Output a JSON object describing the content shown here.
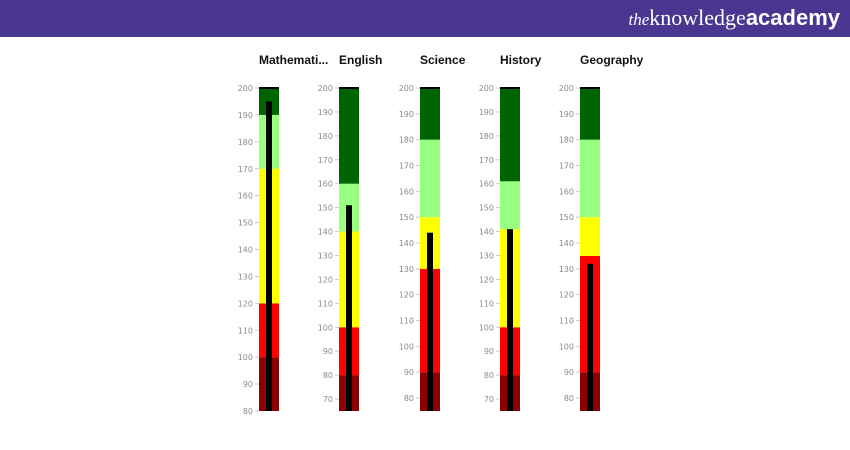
{
  "header": {
    "brand_the": "the",
    "brand_knowledge": "knowledge",
    "brand_academy": "academy",
    "background": "#483691"
  },
  "chart_data": {
    "type": "bullet",
    "orientation": "vertical",
    "colors": {
      "dark_red": "#8b0000",
      "red": "#ff0000",
      "yellow": "#ffff00",
      "light_green": "#99ff7f",
      "dark_green": "#006400",
      "measure": "#000000",
      "marker": "#000000"
    },
    "bars": [
      {
        "title": "Mathemati...",
        "ylim": [
          80,
          200
        ],
        "ticks": [
          200,
          190,
          180,
          170,
          160,
          150,
          140,
          130,
          120,
          110,
          100,
          90,
          80
        ],
        "bands": [
          {
            "from": 80,
            "to": 100,
            "color": "dark_red"
          },
          {
            "from": 100,
            "to": 120,
            "color": "red"
          },
          {
            "from": 120,
            "to": 170,
            "color": "yellow"
          },
          {
            "from": 170,
            "to": 190,
            "color": "light_green"
          },
          {
            "from": 190,
            "to": 200,
            "color": "dark_green"
          }
        ],
        "value": 195,
        "target": 200
      },
      {
        "title": "English",
        "ylim": [
          65,
          200
        ],
        "ticks": [
          200,
          190,
          180,
          170,
          160,
          150,
          140,
          130,
          120,
          110,
          100,
          90,
          80,
          70
        ],
        "bands": [
          {
            "from": 65,
            "to": 80,
            "color": "dark_red"
          },
          {
            "from": 80,
            "to": 100,
            "color": "red"
          },
          {
            "from": 100,
            "to": 140,
            "color": "yellow"
          },
          {
            "from": 140,
            "to": 160,
            "color": "light_green"
          },
          {
            "from": 160,
            "to": 200,
            "color": "dark_green"
          }
        ],
        "value": 151,
        "target": 200
      },
      {
        "title": "Science",
        "ylim": [
          75,
          200
        ],
        "ticks": [
          200,
          190,
          180,
          170,
          160,
          150,
          140,
          130,
          120,
          110,
          100,
          90,
          80
        ],
        "bands": [
          {
            "from": 75,
            "to": 90,
            "color": "dark_red"
          },
          {
            "from": 90,
            "to": 130,
            "color": "red"
          },
          {
            "from": 130,
            "to": 150,
            "color": "yellow"
          },
          {
            "from": 150,
            "to": 180,
            "color": "light_green"
          },
          {
            "from": 180,
            "to": 200,
            "color": "dark_green"
          }
        ],
        "value": 144,
        "target": 200
      },
      {
        "title": "History",
        "ylim": [
          65,
          200
        ],
        "ticks": [
          200,
          190,
          180,
          170,
          160,
          150,
          140,
          130,
          120,
          110,
          100,
          90,
          80,
          70
        ],
        "bands": [
          {
            "from": 65,
            "to": 80,
            "color": "dark_red"
          },
          {
            "from": 80,
            "to": 100,
            "color": "red"
          },
          {
            "from": 100,
            "to": 141,
            "color": "yellow"
          },
          {
            "from": 141,
            "to": 161,
            "color": "light_green"
          },
          {
            "from": 161,
            "to": 200,
            "color": "dark_green"
          }
        ],
        "value": 141,
        "target": 200
      },
      {
        "title": "Geography",
        "ylim": [
          75,
          200
        ],
        "ticks": [
          200,
          190,
          180,
          170,
          160,
          150,
          140,
          130,
          120,
          110,
          100,
          90,
          80
        ],
        "bands": [
          {
            "from": 75,
            "to": 90,
            "color": "dark_red"
          },
          {
            "from": 90,
            "to": 135,
            "color": "red"
          },
          {
            "from": 135,
            "to": 150,
            "color": "yellow"
          },
          {
            "from": 150,
            "to": 180,
            "color": "light_green"
          },
          {
            "from": 180,
            "to": 200,
            "color": "dark_green"
          }
        ],
        "value": 132,
        "target": 200
      }
    ]
  }
}
